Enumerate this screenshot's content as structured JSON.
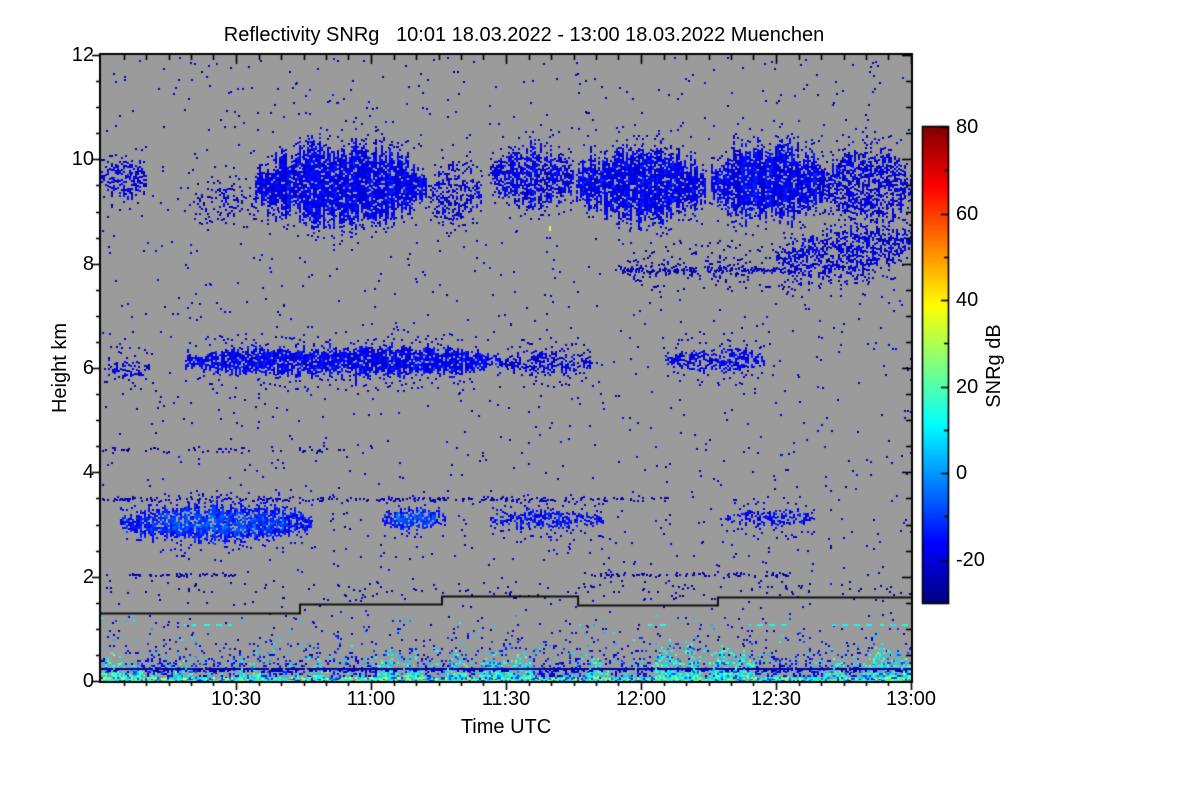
{
  "chart_data": {
    "type": "heatmap",
    "title": "Reflectivity SNRg   10:01 18.03.2022 - 13:00 18.03.2022 Muenchen",
    "xlabel": "Time UTC",
    "ylabel": "Height km",
    "x_range_hours": [
      10.0,
      13.0
    ],
    "x_ticks": [
      {
        "hour": 10.5,
        "label": "10:30"
      },
      {
        "hour": 11.0,
        "label": "11:00"
      },
      {
        "hour": 11.5,
        "label": "11:30"
      },
      {
        "hour": 12.0,
        "label": "12:00"
      },
      {
        "hour": 12.5,
        "label": "12:30"
      },
      {
        "hour": 13.0,
        "label": "13:00"
      }
    ],
    "x_minor_step_minutes": 5,
    "y_range_km": [
      0,
      12
    ],
    "y_ticks": [
      0,
      2,
      4,
      6,
      8,
      10,
      12
    ],
    "y_minor_step_km": 0.5,
    "grid": false,
    "nodata_color": "#9b9b9b",
    "colorbar": {
      "label": "SNRg dB",
      "min": -30,
      "max": 80,
      "ticks": [
        80,
        60,
        40,
        20,
        0,
        -20
      ],
      "minor_step": 10,
      "colormap": "jet",
      "position": "right"
    },
    "cloud_blobs": [
      {
        "t0": 10.0,
        "t1": 10.17,
        "h0": 9.25,
        "h1": 10.05,
        "density": 0.5,
        "snr": -20
      },
      {
        "t0": 10.34,
        "t1": 10.58,
        "h0": 8.95,
        "h1": 9.55,
        "density": 0.22,
        "snr": -22
      },
      {
        "t0": 10.57,
        "t1": 11.2,
        "h0": 8.75,
        "h1": 10.3,
        "density": 0.85,
        "snr": -18
      },
      {
        "t0": 11.21,
        "t1": 11.41,
        "h0": 8.8,
        "h1": 9.9,
        "density": 0.4,
        "snr": -21
      },
      {
        "t0": 11.44,
        "t1": 11.75,
        "h0": 9.1,
        "h1": 10.25,
        "density": 0.65,
        "snr": -19
      },
      {
        "t0": 11.76,
        "t1": 12.24,
        "h0": 8.85,
        "h1": 10.25,
        "density": 0.85,
        "snr": -18
      },
      {
        "t0": 12.26,
        "t1": 12.68,
        "h0": 8.85,
        "h1": 10.35,
        "density": 0.85,
        "snr": -18
      },
      {
        "t0": 12.67,
        "t1": 13.0,
        "h0": 8.8,
        "h1": 10.25,
        "density": 0.55,
        "snr": -20
      },
      {
        "t0": 11.95,
        "t1": 12.55,
        "h0": 7.7,
        "h1": 8.15,
        "density": 0.16,
        "snr": -23
      },
      {
        "t0": 12.5,
        "t1": 13.0,
        "h0": 7.75,
        "h1": 8.7,
        "density": 0.5,
        "snr": -20,
        "skew": 0.8
      },
      {
        "t0": 10.01,
        "t1": 10.18,
        "h0": 5.85,
        "h1": 6.15,
        "density": 0.45,
        "snr": -20
      },
      {
        "t0": 10.31,
        "t1": 11.48,
        "h0": 5.85,
        "h1": 6.45,
        "density": 0.8,
        "snr": -17
      },
      {
        "t0": 11.48,
        "t1": 11.82,
        "h0": 5.9,
        "h1": 6.35,
        "density": 0.5,
        "snr": -20
      },
      {
        "t0": 12.09,
        "t1": 12.46,
        "h0": 5.95,
        "h1": 6.4,
        "density": 0.6,
        "snr": -18
      },
      {
        "t0": 10.07,
        "t1": 10.78,
        "h0": 2.7,
        "h1": 3.4,
        "density": 0.8,
        "snr": -14,
        "core": true
      },
      {
        "t0": 11.04,
        "t1": 11.27,
        "h0": 2.9,
        "h1": 3.35,
        "density": 0.7,
        "snr": -14,
        "core": true
      },
      {
        "t0": 11.44,
        "t1": 11.86,
        "h0": 2.95,
        "h1": 3.3,
        "density": 0.55,
        "snr": -16
      },
      {
        "t0": 12.31,
        "t1": 12.64,
        "h0": 3.0,
        "h1": 3.3,
        "density": 0.5,
        "snr": -16
      }
    ],
    "speckle_rows": [
      {
        "t0": 10.0,
        "t1": 12.1,
        "h": 3.5,
        "spread": 0.07,
        "count": 230,
        "snr": -24
      },
      {
        "t0": 10.1,
        "t1": 10.5,
        "h": 2.05,
        "spread": 0.05,
        "count": 45,
        "snr": -24
      },
      {
        "t0": 11.8,
        "t1": 12.55,
        "h": 2.05,
        "spread": 0.07,
        "count": 80,
        "snr": -24
      },
      {
        "t0": 10.0,
        "t1": 10.9,
        "h": 4.45,
        "spread": 0.09,
        "count": 55,
        "snr": -25
      },
      {
        "t0": 10.0,
        "t1": 13.0,
        "h": 1.75,
        "spread": 0.25,
        "count": 120,
        "snr": -25
      },
      {
        "t0": 11.9,
        "t1": 12.5,
        "h": 7.9,
        "spread": 0.12,
        "count": 140,
        "snr": -23
      }
    ],
    "global_speckle": {
      "count": 1500,
      "snr_min": -28,
      "snr_max": -14
    },
    "outlier_dots": [
      {
        "t": 11.66,
        "h": 8.72,
        "snr": 34
      }
    ],
    "boundary_layer": {
      "top_km": 1.28,
      "base_density": 0.72,
      "scale_km": 0.3,
      "ground_boost": 0.25
    },
    "plumes": [
      {
        "tc": 10.04,
        "w": 0.05,
        "hmax": 0.55
      },
      {
        "tc": 10.13,
        "w": 0.03,
        "hmax": 0.4
      },
      {
        "tc": 10.3,
        "w": 0.04,
        "hmax": 0.45
      },
      {
        "tc": 10.55,
        "w": 0.04,
        "hmax": 0.4
      },
      {
        "tc": 10.8,
        "w": 0.04,
        "hmax": 0.45
      },
      {
        "tc": 11.07,
        "w": 0.05,
        "hmax": 0.65
      },
      {
        "tc": 11.15,
        "w": 0.04,
        "hmax": 0.6
      },
      {
        "tc": 11.31,
        "w": 0.05,
        "hmax": 0.6
      },
      {
        "tc": 11.45,
        "w": 0.05,
        "hmax": 0.7
      },
      {
        "tc": 11.55,
        "w": 0.05,
        "hmax": 0.65
      },
      {
        "tc": 11.84,
        "w": 0.04,
        "hmax": 0.6
      },
      {
        "tc": 12.1,
        "w": 0.06,
        "hmax": 0.85
      },
      {
        "tc": 12.18,
        "w": 0.04,
        "hmax": 0.8
      },
      {
        "tc": 12.3,
        "w": 0.05,
        "hmax": 0.85
      },
      {
        "tc": 12.38,
        "w": 0.04,
        "hmax": 0.7
      },
      {
        "tc": 12.72,
        "w": 0.04,
        "hmax": 0.5
      },
      {
        "tc": 12.88,
        "w": 0.06,
        "hmax": 0.8
      },
      {
        "tc": 12.97,
        "w": 0.04,
        "hmax": 0.75
      }
    ],
    "ground_echo_line": {
      "h": 0.25,
      "snr": -26
    },
    "cyan_dash_line": {
      "h": 1.1,
      "snr": 13,
      "segments": [
        [
          10.3,
          10.5
        ],
        [
          12.02,
          12.09
        ],
        [
          12.4,
          12.56
        ],
        [
          12.7,
          13.0
        ]
      ]
    },
    "step_line": {
      "color": "#111111",
      "points_time_height": [
        [
          10.0,
          1.3
        ],
        [
          10.737,
          1.3
        ],
        [
          10.737,
          1.47
        ],
        [
          11.263,
          1.47
        ],
        [
          11.263,
          1.62
        ],
        [
          11.767,
          1.62
        ],
        [
          11.767,
          1.46
        ],
        [
          12.285,
          1.46
        ],
        [
          12.285,
          1.61
        ],
        [
          13.0,
          1.61
        ]
      ]
    }
  }
}
